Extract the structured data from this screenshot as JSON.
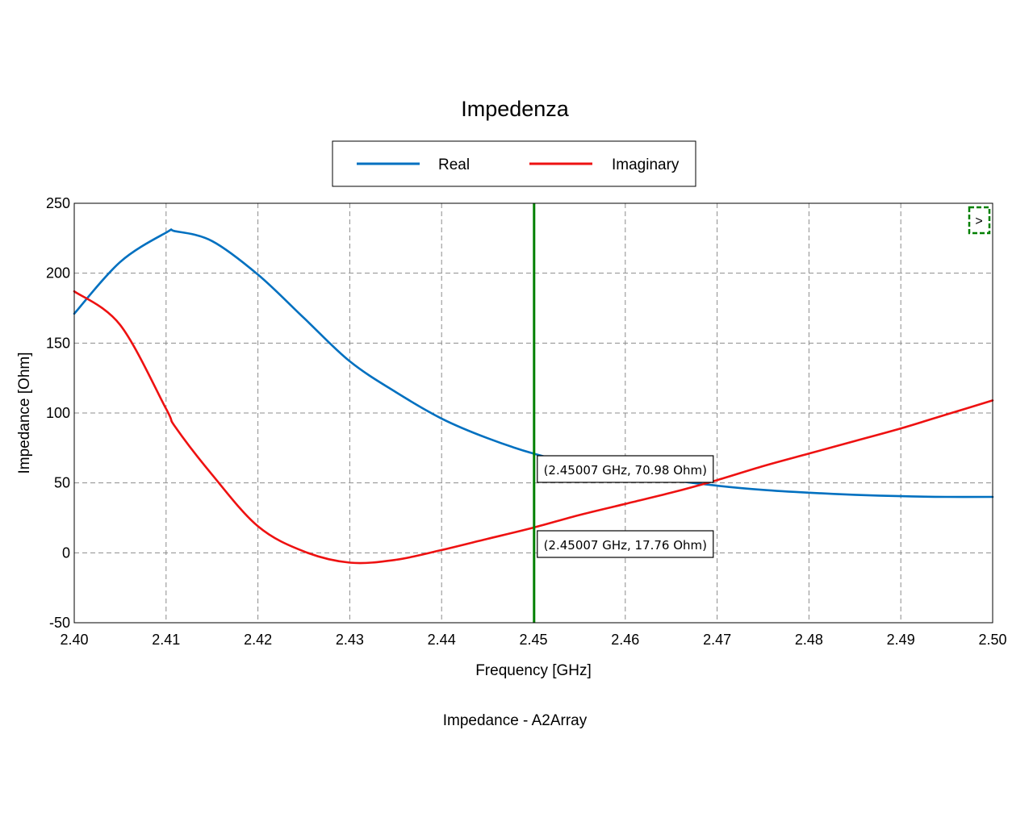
{
  "chart_data": {
    "type": "line",
    "title": "Impedenza",
    "xlabel": "Frequency [GHz]",
    "ylabel": "Impedance [Ohm]",
    "caption": "Impedance - A2Array",
    "xlim": [
      2.4,
      2.5
    ],
    "ylim": [
      -50,
      250
    ],
    "x_ticks": [
      "2.40",
      "2.41",
      "2.42",
      "2.43",
      "2.44",
      "2.45",
      "2.46",
      "2.47",
      "2.48",
      "2.49",
      "2.50"
    ],
    "y_ticks": [
      "250",
      "200",
      "150",
      "100",
      "50",
      "0",
      "-50"
    ],
    "grid": true,
    "legend_position": "top-center",
    "x": [
      2.4,
      2.405,
      2.41,
      2.411,
      2.415,
      2.42,
      2.425,
      2.43,
      2.435,
      2.44,
      2.445,
      2.45,
      2.455,
      2.46,
      2.465,
      2.47,
      2.475,
      2.48,
      2.485,
      2.49,
      2.495,
      2.5
    ],
    "series": [
      {
        "name": "Real",
        "color": "#0070c0",
        "values": [
          171,
          208,
          229,
          230,
          223,
          199,
          168,
          137,
          115,
          96,
          82,
          71,
          63,
          57,
          52,
          48,
          45,
          43,
          41.5,
          40.5,
          40,
          40
        ]
      },
      {
        "name": "Imaginary",
        "color": "#ee1111",
        "values": [
          187,
          163,
          103,
          90,
          56,
          19,
          1,
          -7,
          -5,
          2,
          10,
          18,
          27,
          35,
          43,
          52,
          62,
          71,
          80,
          89,
          99,
          109
        ]
      }
    ],
    "marker": {
      "x": 2.45007,
      "color": "#008000",
      "labels": [
        "(2.45007 GHz, 70.98 Ohm)",
        "(2.45007 GHz, 17.76 Ohm)"
      ],
      "values": [
        70.98,
        17.76
      ]
    },
    "corner_button": {
      "label": ">",
      "color": "#008000",
      "icon": "expand-arrow-icon"
    }
  }
}
